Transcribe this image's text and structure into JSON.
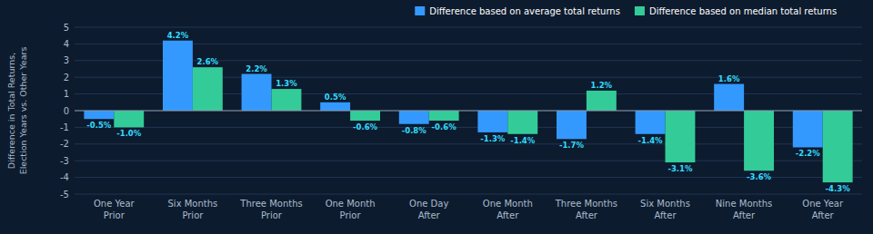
{
  "chart_data": {
    "type": "bar",
    "categories": [
      "One Year\nPrior",
      "Six Months\nPrior",
      "Three Months\nPrior",
      "One Month\nPrior",
      "One Day\nAfter",
      "One Month\nAfter",
      "Three Months\nAfter",
      "Six Months\nAfter",
      "Nine Months\nAfter",
      "One Year\nAfter"
    ],
    "series": [
      {
        "name": "Difference based on average total returns",
        "color": "#3399FF",
        "values": [
          -0.5,
          4.2,
          2.2,
          0.5,
          -0.8,
          -1.3,
          -1.7,
          -1.4,
          1.6,
          -2.2
        ],
        "value_labels": [
          "-0.5%",
          "4.2%",
          "2.2%",
          "0.5%",
          "-0.8%",
          "-1.3%",
          "-1.7%",
          "-1.4%",
          "1.6%",
          "-2.2%"
        ]
      },
      {
        "name": "Difference based on median total returns",
        "color": "#33CC99",
        "values": [
          -1.0,
          2.6,
          1.3,
          -0.6,
          -0.6,
          -1.4,
          1.2,
          -3.1,
          -3.6,
          -4.3
        ],
        "value_labels": [
          "-1.0%",
          "2.6%",
          "1.3%",
          "-0.6%",
          "-0.6%",
          "-1.4%",
          "1.2%",
          "-3.1%",
          "-3.6%",
          "-4.3%"
        ]
      }
    ],
    "ylabel": "Difference in Total Returns,\nElection Years vs. Other Years",
    "ylim": [
      -5,
      5
    ],
    "yticks": [
      -5,
      -4,
      -3,
      -2,
      -1,
      0,
      1,
      2,
      3,
      4,
      5
    ],
    "grid": true,
    "legend": "top",
    "data_labels": true
  }
}
